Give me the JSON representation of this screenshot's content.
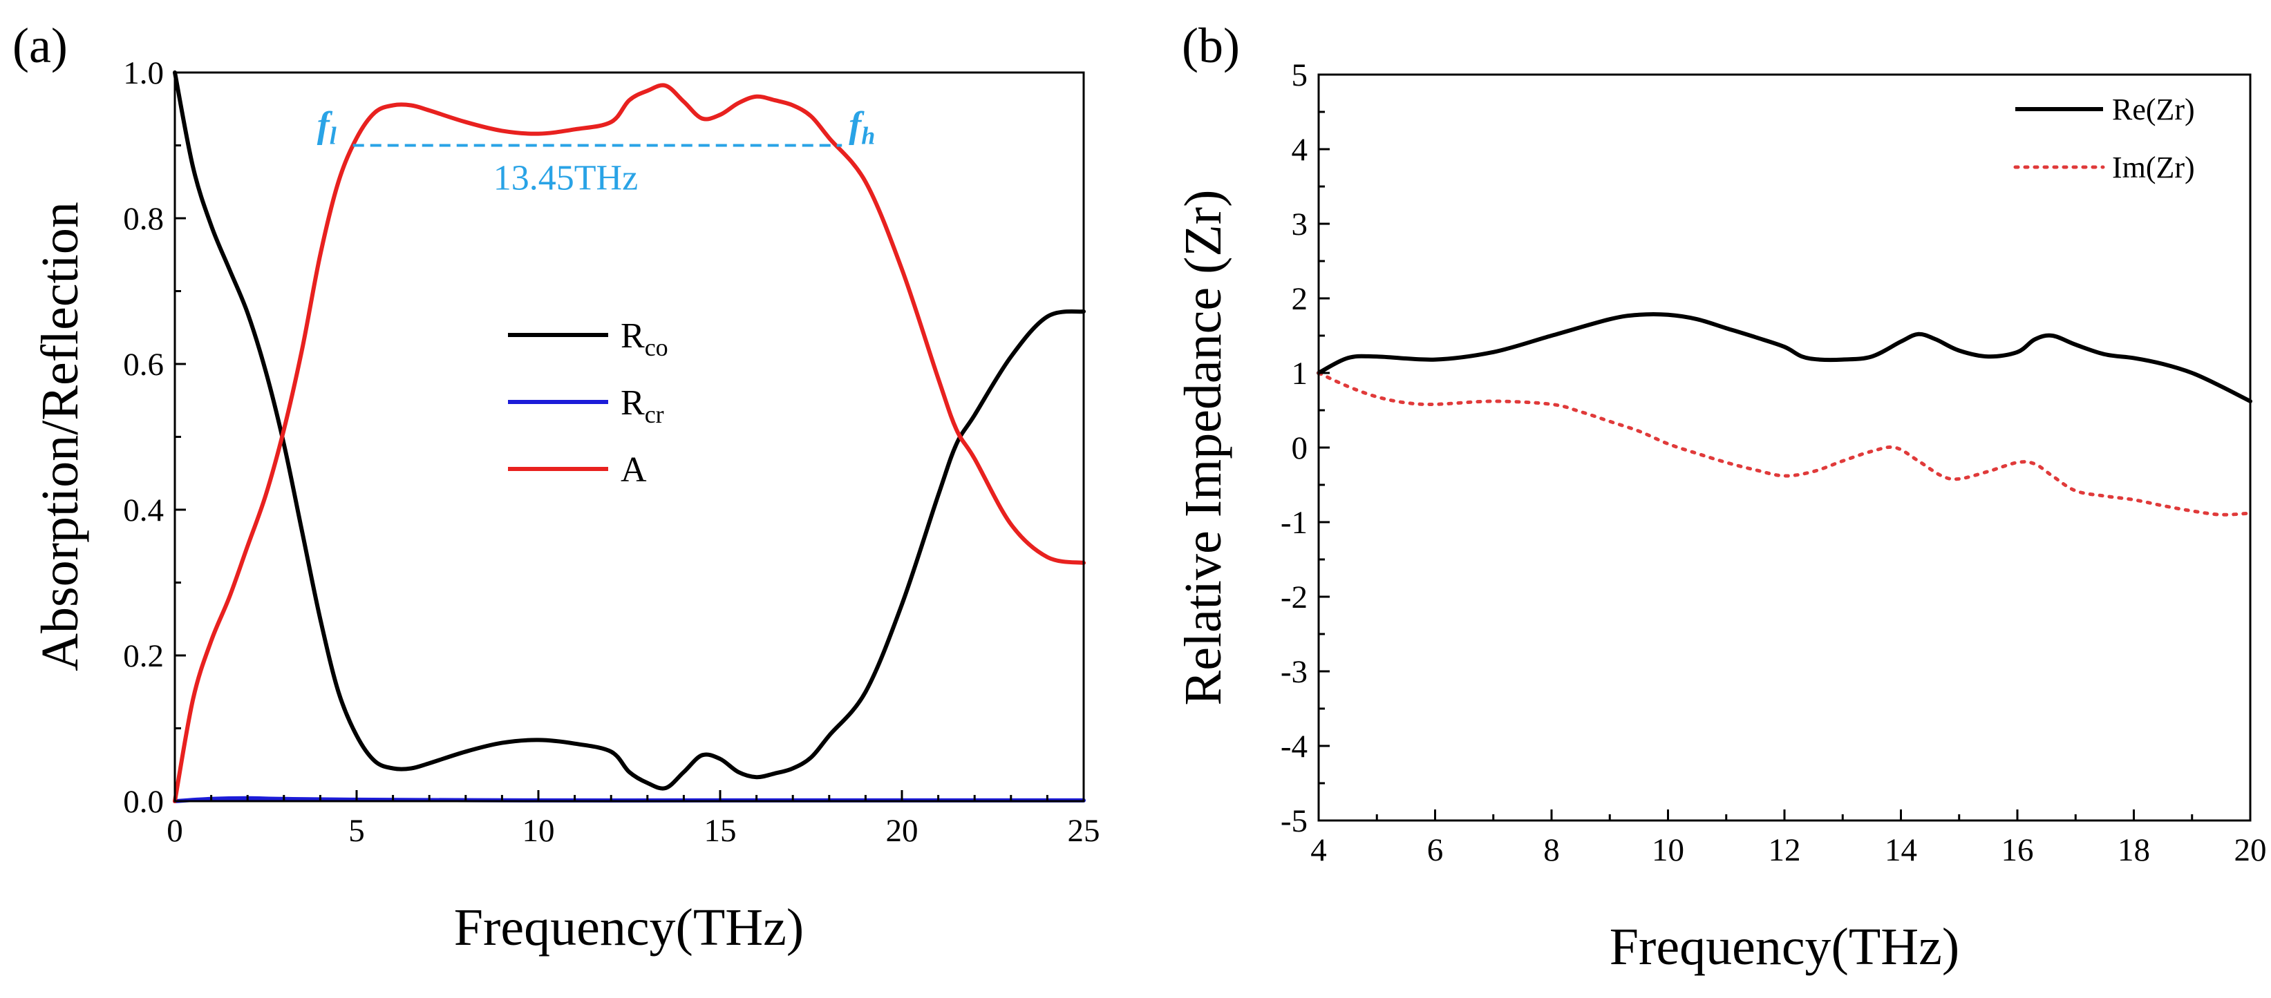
{
  "chart_data": [
    {
      "type": "line",
      "panel_label": "(a)",
      "xlabel": "Frequency(THz)",
      "ylabel": "Absorption/Reflection",
      "xlim": [
        0,
        25
      ],
      "ylim": [
        0,
        1.0
      ],
      "xticks": [
        "0",
        "5",
        "10",
        "15",
        "20",
        "25"
      ],
      "yticks": [
        "0.0",
        "0.2",
        "0.4",
        "0.6",
        "0.8",
        "1.0"
      ],
      "legend_position": "center",
      "series": [
        {
          "name": "Rco",
          "name_main": "R",
          "name_sub": "co",
          "color": "#000000",
          "x": [
            0,
            0.5,
            1,
            1.5,
            2,
            2.5,
            3,
            3.5,
            4,
            4.5,
            5,
            5.5,
            6,
            6.5,
            7,
            8,
            9,
            10,
            11,
            12,
            12.5,
            13,
            13.5,
            14,
            14.5,
            15,
            15.5,
            16,
            16.5,
            17,
            17.5,
            18,
            19,
            20,
            21,
            21.5,
            22,
            23,
            24,
            25
          ],
          "values": [
            1.0,
            0.87,
            0.79,
            0.73,
            0.67,
            0.59,
            0.49,
            0.37,
            0.25,
            0.15,
            0.09,
            0.055,
            0.045,
            0.045,
            0.052,
            0.068,
            0.08,
            0.084,
            0.079,
            0.068,
            0.04,
            0.025,
            0.018,
            0.04,
            0.063,
            0.058,
            0.04,
            0.033,
            0.038,
            0.045,
            0.06,
            0.09,
            0.15,
            0.27,
            0.42,
            0.49,
            0.53,
            0.61,
            0.665,
            0.672
          ]
        },
        {
          "name": "Rcr",
          "name_main": "R",
          "name_sub": "cr",
          "color": "#1c1cd8",
          "x": [
            0,
            1,
            2,
            3,
            5,
            10,
            15,
            20,
            25
          ],
          "values": [
            0.0,
            0.003,
            0.004,
            0.003,
            0.002,
            0.001,
            0.001,
            0.001,
            0.001
          ]
        },
        {
          "name": "A",
          "name_main": "A",
          "name_sub": "",
          "color": "#e8211f",
          "x": [
            0,
            0.5,
            1,
            1.5,
            2,
            2.5,
            3,
            3.5,
            4,
            4.5,
            5,
            5.5,
            6,
            6.5,
            7,
            8,
            9,
            10,
            11,
            12,
            12.5,
            13,
            13.5,
            14,
            14.5,
            15,
            15.5,
            16,
            16.5,
            17,
            17.5,
            18,
            19,
            20,
            21,
            21.5,
            22,
            23,
            24,
            25
          ],
          "values": [
            0.0,
            0.14,
            0.22,
            0.28,
            0.35,
            0.42,
            0.51,
            0.62,
            0.75,
            0.85,
            0.91,
            0.945,
            0.955,
            0.955,
            0.948,
            0.932,
            0.92,
            0.916,
            0.922,
            0.932,
            0.962,
            0.975,
            0.982,
            0.96,
            0.937,
            0.942,
            0.958,
            0.967,
            0.962,
            0.955,
            0.94,
            0.91,
            0.85,
            0.73,
            0.58,
            0.51,
            0.47,
            0.38,
            0.335,
            0.327
          ]
        }
      ],
      "annotations": {
        "f_low_label": "f",
        "f_low_sub": "l",
        "f_high_label": "f",
        "f_high_sub": "h",
        "f_low_x": 4.9,
        "f_high_x": 18.35,
        "band_level": 0.9,
        "bandwidth_text": "13.45THz",
        "color": "#29a3e6"
      }
    },
    {
      "type": "line",
      "panel_label": "(b)",
      "xlabel": "Frequency(THz)",
      "ylabel": "Relative Impedance (Zr)",
      "xlim": [
        4,
        20
      ],
      "ylim": [
        -5,
        5
      ],
      "xticks": [
        "4",
        "6",
        "8",
        "10",
        "12",
        "14",
        "16",
        "18",
        "20"
      ],
      "yticks": [
        "-5",
        "-4",
        "-3",
        "-2",
        "-1",
        "0",
        "1",
        "2",
        "3",
        "4",
        "5"
      ],
      "legend_position": "top-right",
      "series": [
        {
          "name": "Re(Zr)",
          "color": "#000000",
          "style": "solid",
          "x": [
            4,
            4.5,
            5,
            6,
            7,
            8,
            9,
            9.5,
            10,
            10.5,
            11,
            11.5,
            12,
            12.3,
            12.6,
            13,
            13.5,
            14,
            14.3,
            14.6,
            15,
            15.5,
            16,
            16.3,
            16.6,
            17,
            17.5,
            18,
            18.5,
            19,
            19.5,
            20
          ],
          "values": [
            1.0,
            1.2,
            1.22,
            1.18,
            1.28,
            1.5,
            1.72,
            1.78,
            1.78,
            1.72,
            1.6,
            1.48,
            1.35,
            1.22,
            1.18,
            1.18,
            1.22,
            1.42,
            1.52,
            1.45,
            1.3,
            1.22,
            1.28,
            1.45,
            1.5,
            1.38,
            1.25,
            1.2,
            1.12,
            1.0,
            0.82,
            0.62
          ]
        },
        {
          "name": "Im(Zr)",
          "color": "#e03a3a",
          "style": "dotted",
          "x": [
            4,
            4.5,
            5,
            5.5,
            6,
            7,
            8,
            8.5,
            9,
            9.5,
            10,
            10.5,
            11,
            11.5,
            12,
            12.5,
            13,
            13.5,
            13.9,
            14.3,
            14.7,
            15,
            15.5,
            16,
            16.3,
            16.6,
            17,
            17.5,
            18,
            18.5,
            19,
            19.5,
            20
          ],
          "values": [
            1.0,
            0.82,
            0.68,
            0.6,
            0.58,
            0.62,
            0.58,
            0.48,
            0.35,
            0.22,
            0.05,
            -0.08,
            -0.2,
            -0.3,
            -0.38,
            -0.32,
            -0.18,
            -0.05,
            0.0,
            -0.18,
            -0.38,
            -0.42,
            -0.32,
            -0.2,
            -0.22,
            -0.38,
            -0.58,
            -0.65,
            -0.7,
            -0.78,
            -0.85,
            -0.9,
            -0.88
          ]
        }
      ]
    }
  ]
}
